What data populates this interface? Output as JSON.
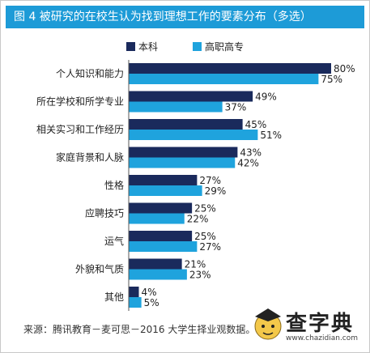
{
  "title": "图 4  被研究的在校生认为找到理想工作的要素分布（多选）",
  "source": "来源：腾讯教育－麦可思－2016 大学生择业观数据。",
  "watermark": {
    "text": "查字典",
    "subtext": "www.chazidian.com"
  },
  "colors": {
    "title_bg": "#1d9bd7",
    "series1": "#1a2a5c",
    "series2": "#1fa3dd"
  },
  "chart_data": {
    "type": "bar",
    "orientation": "horizontal",
    "categories": [
      "个人知识和能力",
      "所在学校和所学专业",
      "相关实习和工作经历",
      "家庭背景和人脉",
      "性格",
      "应聘技巧",
      "运气",
      "外貌和气质",
      "其他"
    ],
    "series": [
      {
        "name": "本科",
        "values": [
          80,
          49,
          45,
          43,
          27,
          25,
          25,
          21,
          4
        ],
        "labels": [
          "80%",
          "49%",
          "45%",
          "43%",
          "27%",
          "25%",
          "25%",
          "21%",
          "4%"
        ]
      },
      {
        "name": "高职高专",
        "values": [
          75,
          37,
          51,
          42,
          29,
          22,
          27,
          23,
          5
        ],
        "labels": [
          "75%",
          "37%",
          "51%",
          "42%",
          "29%",
          "22%",
          "27%",
          "23%",
          "5%"
        ]
      }
    ],
    "xlim": [
      0,
      80
    ],
    "legend": "top-center",
    "grid": false
  }
}
